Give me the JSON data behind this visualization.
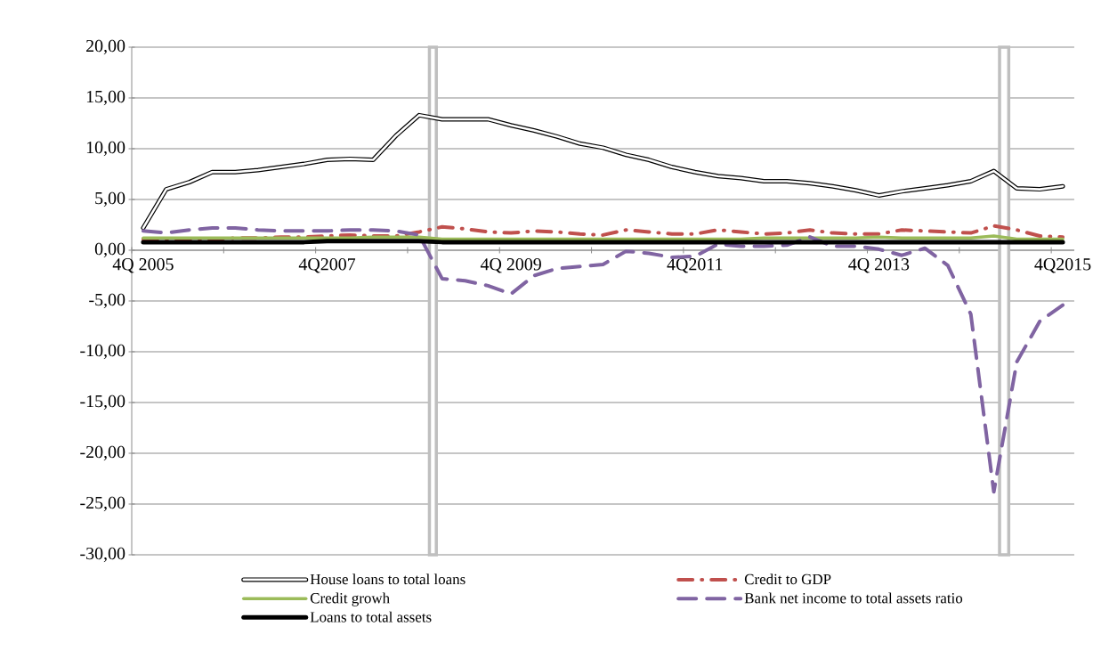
{
  "chart_data": {
    "type": "line",
    "categories": [
      "4Q 2005",
      null,
      null,
      null,
      null,
      null,
      null,
      null,
      "4Q2007",
      null,
      null,
      null,
      null,
      null,
      null,
      null,
      "4Q 2009",
      null,
      null,
      null,
      null,
      null,
      null,
      null,
      "4Q2011",
      null,
      null,
      null,
      null,
      null,
      null,
      null,
      "4Q 2013",
      null,
      null,
      null,
      null,
      null,
      null,
      null,
      "4Q2015"
    ],
    "series": [
      {
        "name": "House loans to total  loans",
        "color": "#000000",
        "line_style": "solid",
        "values": [
          2.2,
          6.0,
          6.7,
          7.7,
          7.7,
          7.9,
          8.2,
          8.5,
          8.9,
          9.0,
          8.9,
          11.3,
          13.3,
          12.9,
          12.9,
          12.9,
          12.3,
          11.8,
          11.2,
          10.5,
          10.1,
          9.4,
          8.9,
          8.2,
          7.7,
          7.3,
          7.1,
          6.8,
          6.8,
          6.6,
          6.3,
          5.9,
          5.4,
          5.8,
          6.1,
          6.4,
          6.8,
          7.8,
          6.1,
          6.0,
          6.3
        ]
      },
      {
        "name": "Credit to GDP",
        "color": "#c0504d",
        "line_style": "dashdot",
        "values": [
          1.1,
          1.1,
          1.1,
          1.1,
          1.2,
          1.2,
          1.3,
          1.3,
          1.4,
          1.5,
          1.4,
          1.4,
          1.8,
          2.3,
          2.1,
          1.8,
          1.7,
          1.9,
          1.8,
          1.6,
          1.5,
          2.0,
          1.8,
          1.6,
          1.6,
          2.0,
          1.8,
          1.6,
          1.7,
          2.0,
          1.7,
          1.6,
          1.6,
          2.0,
          1.9,
          1.8,
          1.7,
          2.4,
          2.0,
          1.4,
          1.3
        ]
      },
      {
        "name": "Credit growh",
        "color": "#9bbb59",
        "line_style": "solid",
        "values": [
          1.2,
          1.2,
          1.2,
          1.2,
          1.2,
          1.2,
          1.2,
          1.2,
          1.2,
          1.2,
          1.3,
          1.3,
          1.3,
          1.1,
          1.1,
          1.1,
          1.1,
          1.1,
          1.1,
          1.1,
          1.1,
          1.1,
          1.1,
          1.1,
          1.1,
          1.1,
          1.1,
          1.2,
          1.2,
          1.2,
          1.2,
          1.2,
          1.3,
          1.2,
          1.2,
          1.2,
          1.2,
          1.4,
          1.1,
          1.1,
          1.1
        ]
      },
      {
        "name": "Bank net income to total assets ratio",
        "color": "#8064a2",
        "line_style": "dashed",
        "values": [
          1.9,
          1.7,
          2.0,
          2.2,
          2.2,
          2.0,
          1.9,
          1.9,
          1.9,
          2.0,
          2.0,
          1.9,
          1.5,
          -2.8,
          -3.0,
          -3.5,
          -4.3,
          -2.5,
          -1.8,
          -1.6,
          -1.4,
          -0.1,
          -0.3,
          -0.7,
          -0.6,
          0.6,
          0.4,
          0.4,
          0.5,
          1.3,
          0.4,
          0.4,
          0.1,
          -0.5,
          0.2,
          -1.5,
          -6.3,
          -23.8,
          -11.0,
          -7.0,
          -5.4
        ]
      },
      {
        "name": "Loans to total assets",
        "color": "#000000",
        "line_style": "solid",
        "values": [
          0.8,
          0.8,
          0.8,
          0.8,
          0.8,
          0.8,
          0.8,
          0.8,
          0.9,
          0.9,
          0.9,
          0.9,
          0.9,
          0.8,
          0.8,
          0.8,
          0.8,
          0.8,
          0.8,
          0.8,
          0.8,
          0.8,
          0.8,
          0.8,
          0.8,
          0.8,
          0.8,
          0.8,
          0.8,
          0.8,
          0.8,
          0.8,
          0.8,
          0.8,
          0.8,
          0.8,
          0.8,
          0.8,
          0.8,
          0.8,
          0.8
        ]
      }
    ],
    "ylim": [
      -30,
      20
    ],
    "yticks": [
      {
        "value": 20,
        "label": "20,00"
      },
      {
        "value": 15,
        "label": "15,00"
      },
      {
        "value": 10,
        "label": "10,00"
      },
      {
        "value": 5,
        "label": "5,00"
      },
      {
        "value": 0,
        "label": "0,00"
      },
      {
        "value": -5,
        "label": "-5,00"
      },
      {
        "value": -10,
        "label": "-10,00"
      },
      {
        "value": -15,
        "label": "-15,00"
      },
      {
        "value": -20,
        "label": "-20,00"
      },
      {
        "value": -25,
        "label": "-25,00"
      },
      {
        "value": -30,
        "label": "-30,00"
      }
    ],
    "grid": "y",
    "legend": "bottom",
    "marker": "none"
  }
}
